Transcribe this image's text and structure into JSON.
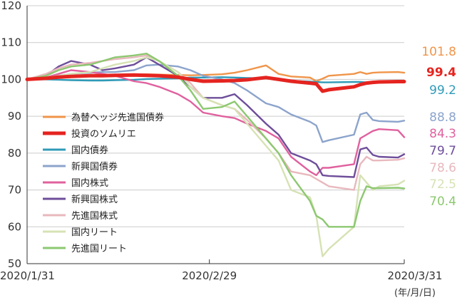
{
  "chart_data": {
    "type": "line",
    "title": "",
    "xlabel": "",
    "ylabel": "",
    "x_unit_note": "(年/月/日)",
    "ylim": [
      50,
      120
    ],
    "yticks": [
      50,
      60,
      70,
      80,
      90,
      100,
      110,
      120
    ],
    "x_ticks": [
      "2020/1/31",
      "2020/2/29",
      "2020/3/31"
    ],
    "x_range": [
      "2020/1/31",
      "2020/3/31"
    ],
    "grid": "horizontal",
    "legend_position": "left-middle",
    "x": [
      "2020/1/31",
      "2020/2/3",
      "2020/2/5",
      "2020/2/7",
      "2020/2/10",
      "2020/2/12",
      "2020/2/14",
      "2020/2/17",
      "2020/2/19",
      "2020/2/21",
      "2020/2/24",
      "2020/2/26",
      "2020/2/28",
      "2020/3/2",
      "2020/3/4",
      "2020/3/6",
      "2020/3/9",
      "2020/3/11",
      "2020/3/13",
      "2020/3/16",
      "2020/3/17",
      "2020/3/18",
      "2020/3/19",
      "2020/3/23",
      "2020/3/24",
      "2020/3/25",
      "2020/3/26",
      "2020/3/27",
      "2020/3/30",
      "2020/3/31"
    ],
    "series": [
      {
        "name": "為替ヘッジ先進国債券",
        "color": "#f0954a",
        "end_label": "101.8",
        "highlight": false,
        "values": [
          100,
          100.2,
          100.5,
          100.8,
          101,
          101.1,
          101.2,
          101.3,
          101.4,
          101.3,
          101.2,
          101.1,
          101.2,
          101.4,
          101.8,
          102.5,
          103.8,
          101.5,
          100.8,
          100.5,
          99.5,
          100.2,
          101,
          101.5,
          102,
          101.5,
          101.8,
          101.9,
          102,
          101.8
        ]
      },
      {
        "name": "投資のソムリエ",
        "color": "#e52420",
        "end_label": "99.4",
        "highlight": true,
        "values": [
          100,
          100.3,
          100.6,
          100.8,
          101,
          101,
          101.1,
          101.2,
          101.1,
          101,
          100.6,
          100,
          99.5,
          99.6,
          99.7,
          99.9,
          100.5,
          100,
          99.5,
          99,
          98.8,
          96.8,
          97.2,
          98,
          98.6,
          99,
          99.2,
          99.3,
          99.4,
          99.4
        ]
      },
      {
        "name": "国内債券",
        "color": "#2f9bb8",
        "end_label": "99.2",
        "highlight": false,
        "values": [
          100,
          100,
          99.9,
          99.8,
          99.7,
          99.7,
          99.8,
          99.9,
          100.1,
          100.2,
          100.3,
          100.5,
          100.5,
          100.6,
          100.5,
          100.4,
          100.3,
          99.9,
          99.6,
          99.4,
          99.3,
          99.2,
          99.2,
          99.3,
          99.3,
          99.2,
          99.2,
          99.2,
          99.2,
          99.2
        ]
      },
      {
        "name": "新興国債券",
        "color": "#8ca4cc",
        "end_label": "88.8",
        "highlight": false,
        "values": [
          100,
          100.5,
          101,
          101.5,
          101.8,
          102,
          102,
          102.5,
          103.8,
          104,
          103.5,
          102.5,
          101,
          100,
          99,
          97,
          93.5,
          92.5,
          90.5,
          88.5,
          87.5,
          83,
          83.5,
          85,
          90.5,
          91,
          89,
          88.7,
          88.5,
          88.8
        ]
      },
      {
        "name": "国内株式",
        "color": "#e0619e",
        "end_label": "84.3",
        "highlight": false,
        "values": [
          100,
          100.5,
          101.5,
          102.5,
          102,
          101.5,
          101,
          99.5,
          99,
          98,
          96,
          94,
          91,
          90,
          89.5,
          88,
          86,
          84,
          79,
          75,
          74,
          76,
          76,
          77,
          84,
          85,
          86,
          86.5,
          86.2,
          84.3
        ]
      },
      {
        "name": "新興国株式",
        "color": "#6e4e9a",
        "end_label": "79.7",
        "highlight": false,
        "values": [
          100,
          101,
          103.5,
          105,
          104,
          102.5,
          103,
          104,
          106,
          104,
          101,
          98,
          95,
          95,
          96,
          93,
          88,
          85,
          80,
          78,
          77,
          74,
          73.8,
          73.5,
          81,
          81.5,
          79.5,
          79,
          78.8,
          79.7
        ]
      },
      {
        "name": "先進国株式",
        "color": "#e8b8bd",
        "end_label": "78.6",
        "highlight": false,
        "values": [
          100,
          101.5,
          103,
          104,
          104.5,
          105,
          105.5,
          106,
          106.5,
          105,
          102,
          99,
          95,
          93,
          92,
          89,
          84,
          80,
          75,
          74,
          73,
          72,
          71,
          70,
          77,
          79,
          78,
          78,
          78.2,
          78.6
        ]
      },
      {
        "name": "国内リート",
        "color": "#d6e2b4",
        "end_label": "72.5",
        "highlight": false,
        "values": [
          100,
          100.5,
          101,
          101.5,
          102,
          103,
          104,
          105,
          106,
          105,
          102,
          98,
          95,
          93,
          92,
          88,
          82,
          78,
          70,
          68,
          63,
          52,
          54,
          60,
          74,
          72,
          70,
          71,
          71.5,
          72.5
        ]
      },
      {
        "name": "先進国リート",
        "color": "#8cc870",
        "end_label": "70.4",
        "highlight": false,
        "values": [
          100,
          101,
          102.5,
          103.5,
          104,
          105,
          106,
          106.5,
          107,
          105,
          101,
          97,
          92,
          92.5,
          94,
          90,
          84,
          80,
          74,
          67,
          63,
          62,
          60,
          60,
          67,
          71,
          70.5,
          70.5,
          70.6,
          70.4
        ]
      }
    ]
  }
}
